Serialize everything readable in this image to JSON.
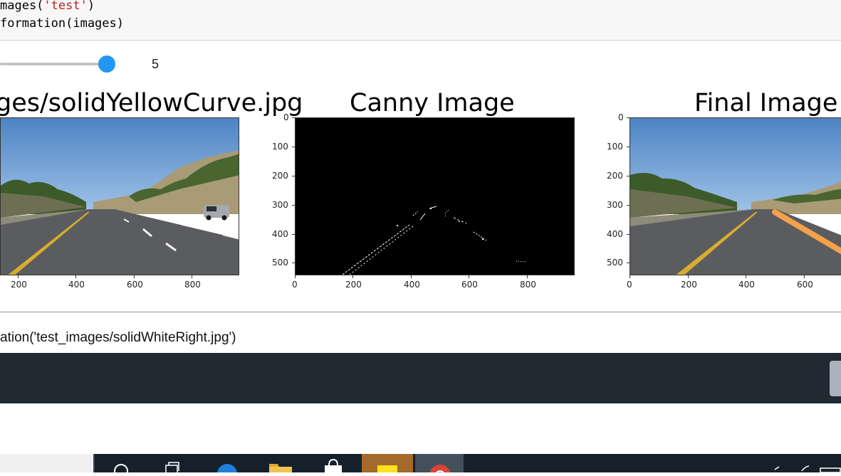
{
  "code": {
    "line1": {
      "prefix": "mages(",
      "string": "'test'",
      "suffix": ")"
    },
    "line2": "formation(images)"
  },
  "slider": {
    "value": "5",
    "fraction": 0.97
  },
  "plots": [
    {
      "title": "ges/solidYellowCurve.jpg",
      "x_ticks": [
        "200",
        "400",
        "600",
        "800"
      ],
      "y_ticks": []
    },
    {
      "title": "Canny Image",
      "x_ticks": [
        "0",
        "200",
        "400",
        "600",
        "800"
      ],
      "y_ticks": [
        "0",
        "100",
        "200",
        "300",
        "400",
        "500"
      ]
    },
    {
      "title": "Final Image",
      "x_ticks": [
        "0",
        "200",
        "400",
        "600"
      ],
      "y_ticks": [
        "0",
        "100",
        "200",
        "300",
        "400",
        "500"
      ]
    }
  ],
  "next_call": "ation('test_images/solidWhiteRight.jpg')",
  "taskbar": {
    "icons": [
      "search-icon",
      "task-view-icon",
      "edge-icon",
      "file-explorer-icon",
      "store-icon",
      "sticky-notes-icon",
      "chrome-icon"
    ]
  },
  "colors": {
    "slider_accent": "#2196f3",
    "code_string": "#ba2121",
    "lane_yellow": "#e8b63a",
    "lane_overlay": "#f4a24a",
    "dark_bar": "#1f2a33",
    "taskbar": "#15202b"
  }
}
